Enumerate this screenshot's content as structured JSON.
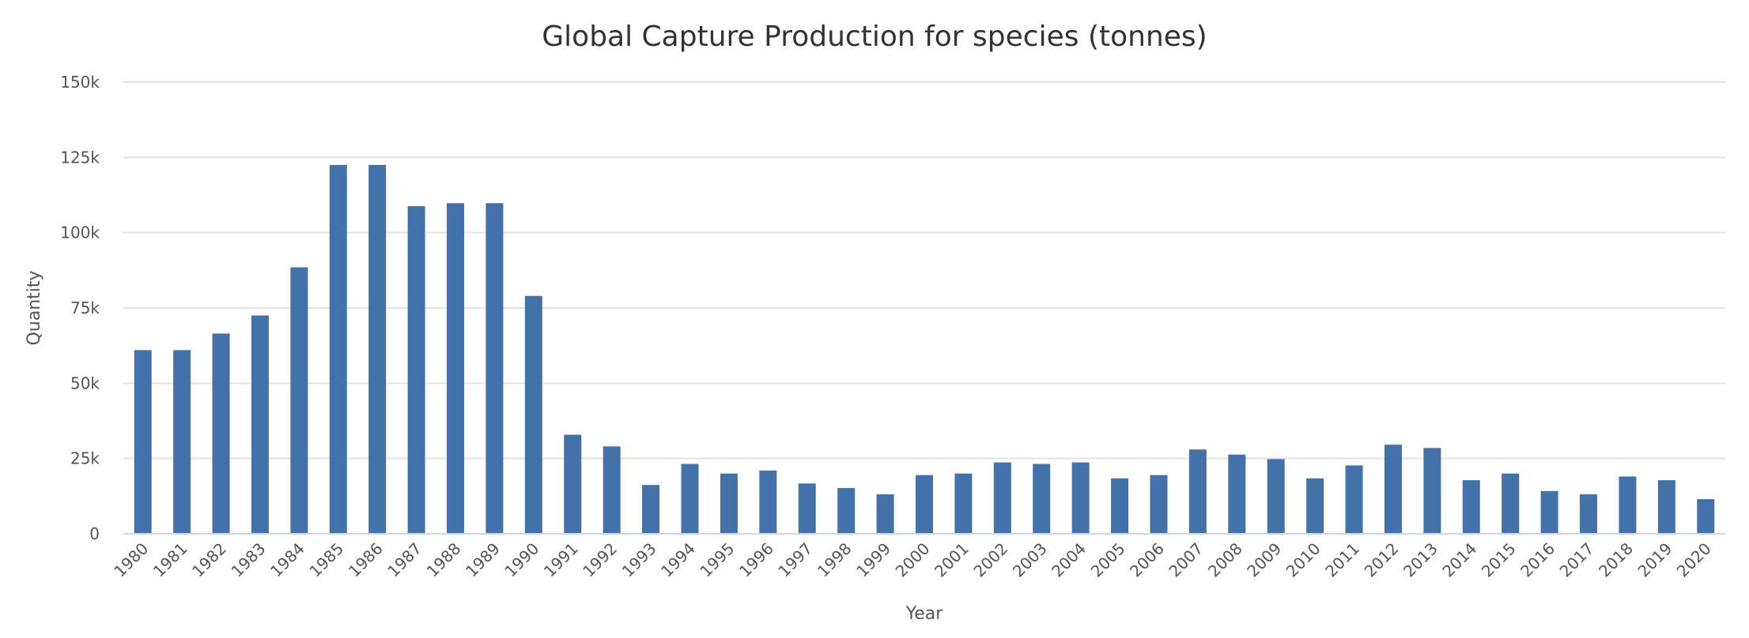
{
  "chart_data": {
    "type": "bar",
    "title": "Global Capture Production for species (tonnes)",
    "xlabel": "Year",
    "ylabel": "Quantity",
    "ylim": [
      0,
      150000
    ],
    "yticks": [
      0,
      25000,
      50000,
      75000,
      100000,
      125000,
      150000
    ],
    "ytick_labels": [
      "0",
      "25k",
      "50k",
      "75k",
      "100k",
      "125k",
      "150k"
    ],
    "grid": true,
    "bar_color": "#4372aa",
    "categories": [
      "1980",
      "1981",
      "1982",
      "1983",
      "1984",
      "1985",
      "1986",
      "1987",
      "1988",
      "1989",
      "1990",
      "1991",
      "1992",
      "1993",
      "1994",
      "1995",
      "1996",
      "1997",
      "1998",
      "1999",
      "2000",
      "2001",
      "2002",
      "2003",
      "2004",
      "2005",
      "2006",
      "2007",
      "2008",
      "2009",
      "2010",
      "2011",
      "2012",
      "2013",
      "2014",
      "2015",
      "2016",
      "2017",
      "2018",
      "2019",
      "2020"
    ],
    "values": [
      61000,
      61000,
      66500,
      72500,
      88500,
      122500,
      122500,
      108800,
      109800,
      109800,
      79000,
      32900,
      29000,
      16200,
      23200,
      20000,
      21000,
      16700,
      15200,
      13100,
      19500,
      20000,
      23700,
      23200,
      23700,
      18400,
      19500,
      28000,
      26300,
      24800,
      18400,
      22700,
      29600,
      28500,
      17800,
      20000,
      14200,
      13100,
      19000,
      17800,
      11500
    ]
  }
}
